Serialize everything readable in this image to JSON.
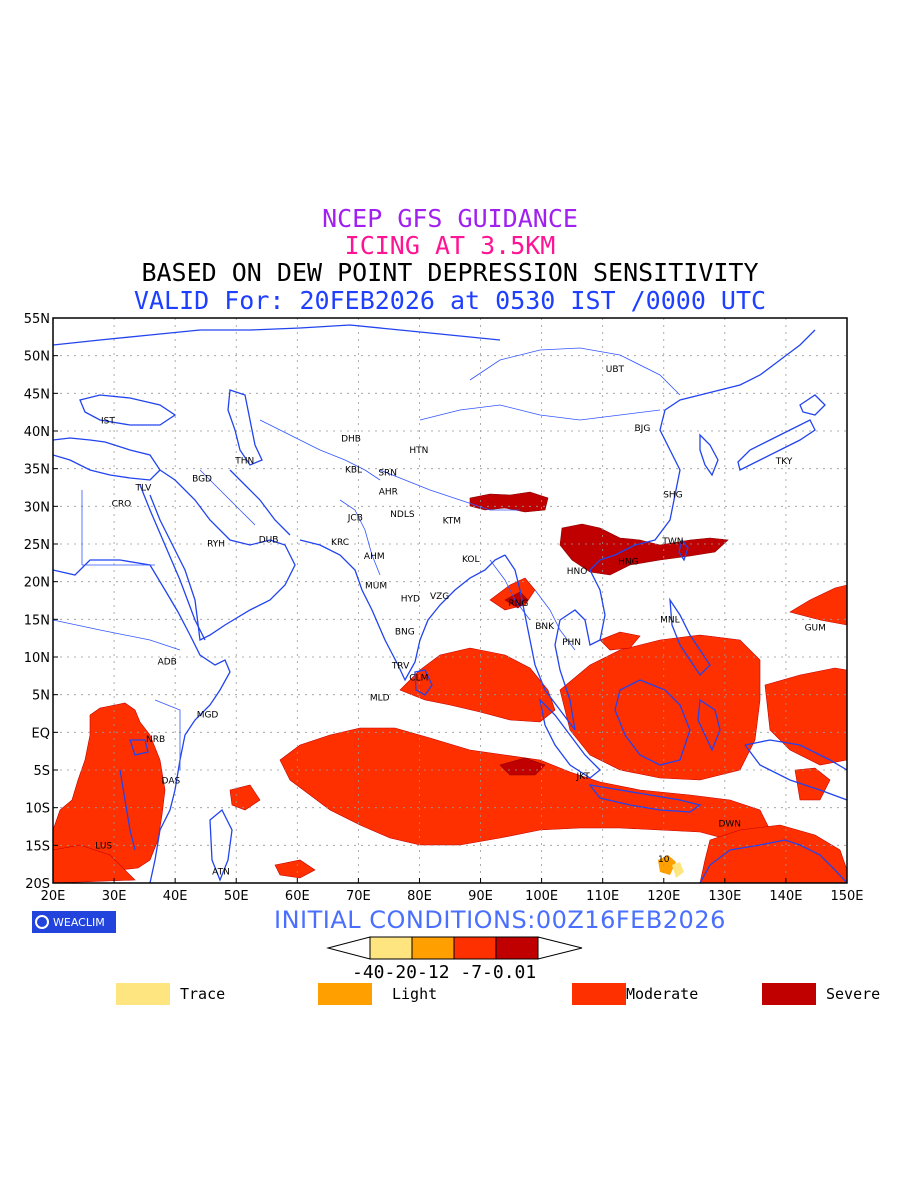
{
  "titles": {
    "line1": "NCEP GFS GUIDANCE",
    "line2": "ICING AT 3.5KM",
    "line3": "BASED ON DEW POINT DEPRESSION SENSITIVITY",
    "line4": "VALID For: 20FEB2026 at 0530 IST /0000 UTC"
  },
  "colors": {
    "trace": "#ffe580",
    "light": "#ffa000",
    "moderate": "#ff3000",
    "severe": "#c00000",
    "coast": "#2244ee"
  },
  "axes": {
    "lat_labels": [
      "55N",
      "50N",
      "45N",
      "40N",
      "35N",
      "30N",
      "25N",
      "20N",
      "15N",
      "10N",
      "5N",
      "EQ",
      "5S",
      "10S",
      "15S",
      "20S"
    ],
    "lon_labels": [
      "20E",
      "30E",
      "40E",
      "50E",
      "60E",
      "70E",
      "80E",
      "90E",
      "100E",
      "110E",
      "120E",
      "130E",
      "140E",
      "150E"
    ]
  },
  "stations": [
    {
      "code": "UBT",
      "lon": 112.0,
      "lat": 47.8
    },
    {
      "code": "BJG",
      "lon": 116.5,
      "lat": 40.0
    },
    {
      "code": "TKY",
      "lon": 139.7,
      "lat": 35.6
    },
    {
      "code": "SHG",
      "lon": 121.5,
      "lat": 31.2
    },
    {
      "code": "TWN",
      "lon": 121.5,
      "lat": 25.0
    },
    {
      "code": "HNG",
      "lon": 114.2,
      "lat": 22.3
    },
    {
      "code": "HNO",
      "lon": 105.8,
      "lat": 21.0
    },
    {
      "code": "MNL",
      "lon": 121.0,
      "lat": 14.6
    },
    {
      "code": "GUM",
      "lon": 144.8,
      "lat": 13.5
    },
    {
      "code": "BNK",
      "lon": 100.5,
      "lat": 13.7
    },
    {
      "code": "PHN",
      "lon": 104.9,
      "lat": 11.6
    },
    {
      "code": "RNG",
      "lon": 96.2,
      "lat": 16.8
    },
    {
      "code": "KOL",
      "lon": 88.4,
      "lat": 22.6
    },
    {
      "code": "KTM",
      "lon": 85.3,
      "lat": 27.7
    },
    {
      "code": "HTN",
      "lon": 79.9,
      "lat": 37.1
    },
    {
      "code": "DHB",
      "lon": 68.8,
      "lat": 38.6
    },
    {
      "code": "KBL",
      "lon": 69.2,
      "lat": 34.5
    },
    {
      "code": "SRN",
      "lon": 74.8,
      "lat": 34.1
    },
    {
      "code": "IST",
      "lon": 29.0,
      "lat": 41.0
    },
    {
      "code": "THN",
      "lon": 51.4,
      "lat": 35.7
    },
    {
      "code": "BGD",
      "lon": 44.4,
      "lat": 33.3
    },
    {
      "code": "TLV",
      "lon": 34.8,
      "lat": 32.1
    },
    {
      "code": "CRO",
      "lon": 31.2,
      "lat": 30.0
    },
    {
      "code": "RYH",
      "lon": 46.7,
      "lat": 24.7
    },
    {
      "code": "DUB",
      "lon": 55.3,
      "lat": 25.2
    },
    {
      "code": "KRC",
      "lon": 67.0,
      "lat": 24.9
    },
    {
      "code": "AHM",
      "lon": 72.6,
      "lat": 23.0
    },
    {
      "code": "JCB",
      "lon": 69.5,
      "lat": 28.1
    },
    {
      "code": "AHR",
      "lon": 74.9,
      "lat": 31.6
    },
    {
      "code": "NDLS",
      "lon": 77.2,
      "lat": 28.6
    },
    {
      "code": "MUM",
      "lon": 72.9,
      "lat": 19.1
    },
    {
      "code": "HYD",
      "lon": 78.5,
      "lat": 17.4
    },
    {
      "code": "VZG",
      "lon": 83.3,
      "lat": 17.7
    },
    {
      "code": "BNG",
      "lon": 77.6,
      "lat": 13.0
    },
    {
      "code": "TRV",
      "lon": 76.9,
      "lat": 8.5
    },
    {
      "code": "CLM",
      "lon": 79.9,
      "lat": 6.9
    },
    {
      "code": "MLD",
      "lon": 73.5,
      "lat": 4.2
    },
    {
      "code": "ADB",
      "lon": 38.7,
      "lat": 9.0
    },
    {
      "code": "MGD",
      "lon": 45.3,
      "lat": 2.0
    },
    {
      "code": "NRB",
      "lon": 36.8,
      "lat": -1.3
    },
    {
      "code": "DAS",
      "lon": 39.3,
      "lat": -6.8
    },
    {
      "code": "LUS",
      "lon": 28.3,
      "lat": -15.4
    },
    {
      "code": "ATN",
      "lon": 47.5,
      "lat": -18.9
    },
    {
      "code": "JKT",
      "lon": 106.8,
      "lat": -6.2
    },
    {
      "code": "DWN",
      "lon": 130.8,
      "lat": -12.5
    },
    {
      "code": "10",
      "lon": 120.0,
      "lat": -17.2
    }
  ],
  "footer": {
    "brand": "WEACLIM",
    "initial": "INITIAL CONDITIONS:00Z16FEB2026",
    "cbar_ticks": "-40-20-12 -7-0.01"
  },
  "legend": [
    {
      "label": "Trace",
      "color": "#ffe580"
    },
    {
      "label": "Light",
      "color": "#ffa000"
    },
    {
      "label": "Moderate",
      "color": "#ff3000"
    },
    {
      "label": "Severe",
      "color": "#c00000"
    }
  ]
}
